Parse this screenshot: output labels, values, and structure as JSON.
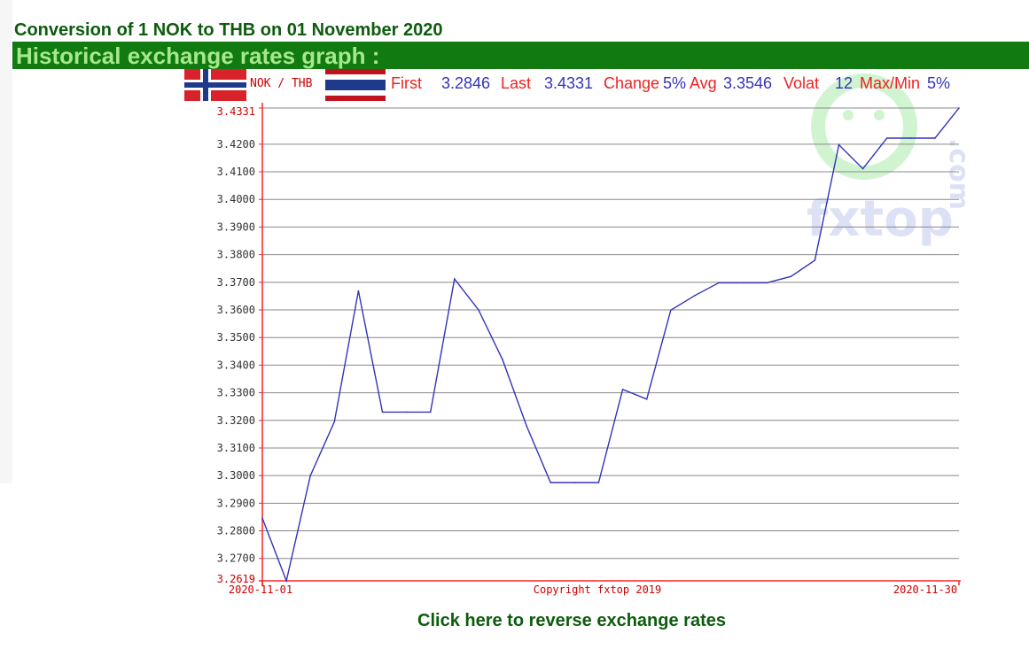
{
  "page": {
    "title": "Conversion of 1 NOK to THB on 01 November 2020",
    "section_title": "Historical exchange rates graph :",
    "reverse_link": "Click here to reverse exchange rates"
  },
  "stats": {
    "pair_label": "NOK / THB",
    "first_label": "First",
    "first_value": "3.2846",
    "last_label": "Last",
    "last_value": "3.4331",
    "change_label": "Change",
    "change_value": "5%",
    "avg_label": "Avg",
    "avg_value": "3.3546",
    "volat_label": "Volat",
    "volat_value": "12",
    "maxmin_label": "Max/Min",
    "maxmin_value": "5%"
  },
  "copyright": "Copyright fxtop 2019",
  "watermark": "fxtop",
  "colors": {
    "line": "#3333bb",
    "axis": "#ff2222",
    "grid": "#888888",
    "title_green": "#0d5c0d",
    "bar_green": "#117a11",
    "bar_text": "#a6e88c"
  },
  "chart_data": {
    "type": "line",
    "title": "",
    "xlabel": "",
    "ylabel": "",
    "x": [
      "2020-11-01",
      "2020-11-02",
      "2020-11-03",
      "2020-11-04",
      "2020-11-05",
      "2020-11-06",
      "2020-11-07",
      "2020-11-08",
      "2020-11-09",
      "2020-11-10",
      "2020-11-11",
      "2020-11-12",
      "2020-11-13",
      "2020-11-14",
      "2020-11-15",
      "2020-11-16",
      "2020-11-17",
      "2020-11-18",
      "2020-11-19",
      "2020-11-20",
      "2020-11-21",
      "2020-11-22",
      "2020-11-23",
      "2020-11-24",
      "2020-11-25",
      "2020-11-26",
      "2020-11-27",
      "2020-11-28",
      "2020-11-29",
      "2020-11-30"
    ],
    "series": [
      {
        "values": [
          3.2846,
          3.2619,
          3.3,
          3.3195,
          3.3669,
          3.323,
          3.323,
          3.323,
          3.3712,
          3.36,
          3.342,
          3.318,
          3.2975,
          3.2975,
          3.2975,
          3.3312,
          3.3277,
          3.3599,
          3.3652,
          3.3698,
          3.3698,
          3.3698,
          3.3721,
          3.378,
          3.4198,
          3.4111,
          3.4222,
          3.4222,
          3.4222,
          3.4331
        ]
      }
    ],
    "ylim": [
      3.2619,
      3.4331
    ],
    "yticks": [
      "3.2619",
      "3.2700",
      "3.2800",
      "3.2900",
      "3.3000",
      "3.3100",
      "3.3200",
      "3.3300",
      "3.3400",
      "3.3500",
      "3.3600",
      "3.3700",
      "3.3800",
      "3.3900",
      "3.4000",
      "3.4100",
      "3.4200",
      "3.4331"
    ],
    "xtick_labels": [
      "2020-11-01",
      "2020-11-30"
    ],
    "grid": true,
    "legend": "none"
  }
}
